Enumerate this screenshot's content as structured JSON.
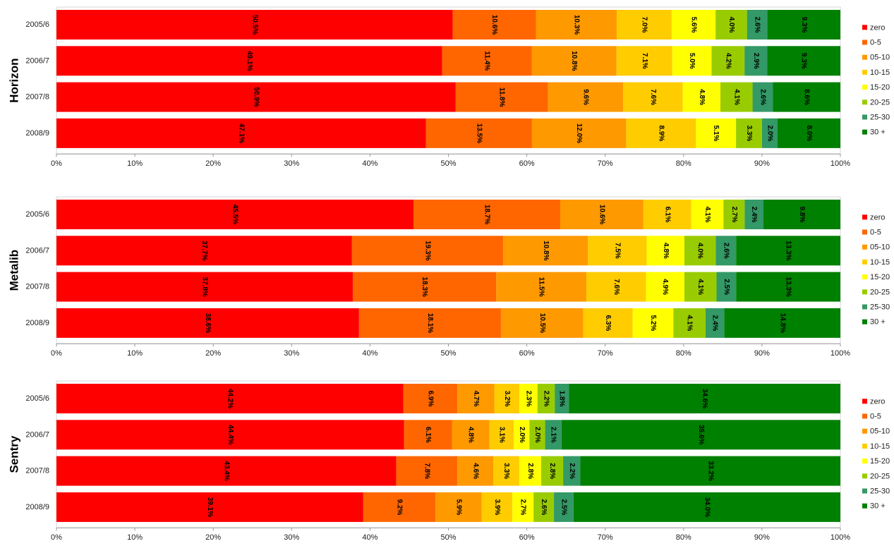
{
  "chart_data": [
    {
      "type": "bar",
      "orientation": "horizontal",
      "stacked": true,
      "normalized": true,
      "title": "Horizon",
      "categories": [
        "2005/6",
        "2006/7",
        "2007/8",
        "2008/9"
      ],
      "legend_position": "right",
      "xlim": [
        0,
        100
      ],
      "x_ticks": [
        "0%",
        "10%",
        "20%",
        "30%",
        "40%",
        "50%",
        "60%",
        "70%",
        "80%",
        "90%",
        "100%"
      ],
      "series": [
        {
          "name": "zero",
          "color": "#ff0000",
          "values": [
            50.5,
            49.1,
            50.9,
            47.1
          ],
          "labels": [
            "50.5%",
            "49.1%",
            "50.9%",
            "47.1%"
          ]
        },
        {
          "name": "0-5",
          "color": "#ff6600",
          "values": [
            10.6,
            11.4,
            11.8,
            13.5
          ],
          "labels": [
            "10.6%",
            "11.4%",
            "11.8%",
            "13.5%"
          ]
        },
        {
          "name": "05-10",
          "color": "#ff9900",
          "values": [
            10.3,
            10.8,
            9.6,
            12.0
          ],
          "labels": [
            "10.3%",
            "10.8%",
            "9.6%",
            "12.0%"
          ]
        },
        {
          "name": "10-15",
          "color": "#ffcc00",
          "values": [
            7.0,
            7.1,
            7.6,
            8.9
          ],
          "labels": [
            "7.0%",
            "7.1%",
            "7.6%",
            "8.9%"
          ]
        },
        {
          "name": "15-20",
          "color": "#ffff00",
          "values": [
            5.6,
            5.0,
            4.8,
            5.1
          ],
          "labels": [
            "5.6%",
            "5.0%",
            "4.8%",
            "5.1%"
          ]
        },
        {
          "name": "20-25",
          "color": "#99cc00",
          "values": [
            4.0,
            4.2,
            4.1,
            3.3
          ],
          "labels": [
            "4.0%",
            "4.2%",
            "4.1%",
            "3.3%"
          ]
        },
        {
          "name": "25-30",
          "color": "#339966",
          "values": [
            2.6,
            2.9,
            2.6,
            2.0
          ],
          "labels": [
            "2.6%",
            "2.9%",
            "2.6%",
            "2.0%"
          ]
        },
        {
          "name": "30 +",
          "color": "#008000",
          "values": [
            9.3,
            9.3,
            8.6,
            8.0
          ],
          "labels": [
            "9.3%",
            "9.3%",
            "8.6%",
            "8.0%"
          ]
        }
      ]
    },
    {
      "type": "bar",
      "orientation": "horizontal",
      "stacked": true,
      "normalized": true,
      "title": "Metalib",
      "categories": [
        "2005/6",
        "2006/7",
        "2007/8",
        "2008/9"
      ],
      "legend_position": "right",
      "xlim": [
        0,
        100
      ],
      "x_ticks": [
        "0%",
        "10%",
        "20%",
        "30%",
        "40%",
        "50%",
        "60%",
        "70%",
        "80%",
        "90%",
        "100%"
      ],
      "series": [
        {
          "name": "zero",
          "color": "#ff0000",
          "values": [
            45.5,
            37.7,
            37.8,
            38.6
          ],
          "labels": [
            "45.5%",
            "37.7%",
            "37.8%",
            "38.6%"
          ]
        },
        {
          "name": "0-5",
          "color": "#ff6600",
          "values": [
            18.7,
            19.3,
            18.3,
            18.1
          ],
          "labels": [
            "18.7%",
            "19.3%",
            "18.3%",
            "18.1%"
          ]
        },
        {
          "name": "05-10",
          "color": "#ff9900",
          "values": [
            10.6,
            10.8,
            11.5,
            10.5
          ],
          "labels": [
            "10.6%",
            "10.8%",
            "11.5%",
            "10.5%"
          ]
        },
        {
          "name": "10-15",
          "color": "#ffcc00",
          "values": [
            6.1,
            7.5,
            7.6,
            6.3
          ],
          "labels": [
            "6.1%",
            "7.5%",
            "7.6%",
            "6.3%"
          ]
        },
        {
          "name": "15-20",
          "color": "#ffff00",
          "values": [
            4.1,
            4.8,
            4.9,
            5.2
          ],
          "labels": [
            "4.1%",
            "4.8%",
            "4.9%",
            "5.2%"
          ]
        },
        {
          "name": "20-25",
          "color": "#99cc00",
          "values": [
            2.7,
            4.0,
            4.1,
            4.1
          ],
          "labels": [
            "2.7%",
            "4.0%",
            "4.1%",
            "4.1%"
          ]
        },
        {
          "name": "25-30",
          "color": "#339966",
          "values": [
            2.4,
            2.6,
            2.5,
            2.4
          ],
          "labels": [
            "2.4%",
            "2.6%",
            "2.5%",
            "2.4%"
          ]
        },
        {
          "name": "30 +",
          "color": "#008000",
          "values": [
            9.8,
            13.3,
            13.3,
            14.8
          ],
          "labels": [
            "9.8%",
            "13.3%",
            "13.3%",
            "14.8%"
          ]
        }
      ]
    },
    {
      "type": "bar",
      "orientation": "horizontal",
      "stacked": true,
      "normalized": true,
      "title": "Sentry",
      "categories": [
        "2005/6",
        "2006/7",
        "2007/8",
        "2008/9"
      ],
      "legend_position": "right",
      "xlim": [
        0,
        100
      ],
      "x_ticks": [
        "0%",
        "10%",
        "20%",
        "30%",
        "40%",
        "50%",
        "60%",
        "70%",
        "80%",
        "90%",
        "100%"
      ],
      "series": [
        {
          "name": "zero",
          "color": "#ff0000",
          "values": [
            44.2,
            44.4,
            43.4,
            39.1
          ],
          "labels": [
            "44.2%",
            "44.4%",
            "43.4%",
            "39.1%"
          ]
        },
        {
          "name": "0-5",
          "color": "#ff6600",
          "values": [
            6.9,
            6.1,
            7.8,
            9.2
          ],
          "labels": [
            "6.9%",
            "6.1%",
            "7.8%",
            "9.2%"
          ]
        },
        {
          "name": "05-10",
          "color": "#ff9900",
          "values": [
            4.7,
            4.8,
            4.6,
            5.9
          ],
          "labels": [
            "4.7%",
            "4.8%",
            "4.6%",
            "5.9%"
          ]
        },
        {
          "name": "10-15",
          "color": "#ffcc00",
          "values": [
            3.2,
            3.1,
            3.3,
            3.9
          ],
          "labels": [
            "3.2%",
            "3.1%",
            "3.3%",
            "3.9%"
          ]
        },
        {
          "name": "15-20",
          "color": "#ffff00",
          "values": [
            2.3,
            2.0,
            2.8,
            2.7
          ],
          "labels": [
            "2.3%",
            "2.0%",
            "2.8%",
            "2.7%"
          ]
        },
        {
          "name": "20-25",
          "color": "#99cc00",
          "values": [
            2.2,
            2.0,
            2.8,
            2.6
          ],
          "labels": [
            "2.2%",
            "2.0%",
            "2.8%",
            "2.6%"
          ]
        },
        {
          "name": "25-30",
          "color": "#339966",
          "values": [
            1.8,
            2.1,
            2.2,
            2.5
          ],
          "labels": [
            "1.8%",
            "2.1%",
            "2.2%",
            "2.5%"
          ]
        },
        {
          "name": "30 +",
          "color": "#008000",
          "values": [
            34.6,
            35.6,
            33.2,
            34.0
          ],
          "labels": [
            "34.6%",
            "35.6%",
            "33.2%",
            "34.0%"
          ]
        }
      ]
    }
  ]
}
